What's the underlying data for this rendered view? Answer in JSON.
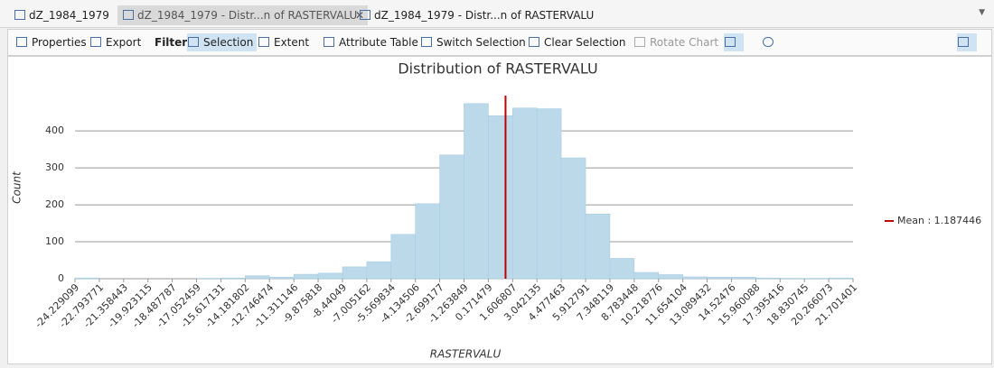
{
  "tabs": [
    "dZ_1984_1979",
    "dZ_1984_1979 - Distr...n of RASTERVALU",
    "dZ_1984_1979 - Distr...n of RASTERVALU"
  ],
  "toolbar": {
    "properties": "Properties",
    "export": "Export",
    "filter": "Filter:",
    "selection": "Selection",
    "extent": "Extent",
    "attribute_table": "Attribute Table",
    "switch_selection": "Switch Selection",
    "clear_selection": "Clear Selection",
    "rotate_chart": "Rotate Chart"
  },
  "chart_data": {
    "type": "histogram",
    "title": "Distribution of RASTERVALU",
    "xlabel": "RASTERVALU",
    "ylabel": "Count",
    "bins": [
      -24.229099,
      -22.793771,
      -21.358443,
      -19.923115,
      -18.487787,
      -17.052459,
      -15.617131,
      -14.181802,
      -12.746474,
      -11.311146,
      -9.875818,
      -8.44049,
      -7.005162,
      -5.569834,
      -4.134506,
      -2.699177,
      -1.263849,
      0.171479,
      1.606807,
      3.042135,
      4.477463,
      5.912791,
      7.348119,
      8.783448,
      10.218776,
      11.654104,
      13.089432,
      14.52476,
      15.960088,
      17.395416,
      18.830745,
      20.266073,
      21.701401
    ],
    "values": [
      2,
      0,
      0,
      0,
      0,
      1,
      2,
      8,
      4,
      12,
      15,
      32,
      46,
      120,
      203,
      335,
      474,
      441,
      462,
      460,
      327,
      175,
      55,
      17,
      11,
      5,
      4,
      4,
      2,
      1,
      1,
      2
    ],
    "color": "#bcd9ea",
    "edge_color": "#a8cde2",
    "mean": {
      "value": 1.187446,
      "label": "Mean : 1.187446"
    },
    "mean_color": "#c00000",
    "xlim": [
      -24.229099,
      21.701401
    ],
    "ylim": [
      0,
      520
    ],
    "yticks": [
      0,
      100,
      200,
      300,
      400
    ],
    "grid": true,
    "legend": "right"
  }
}
